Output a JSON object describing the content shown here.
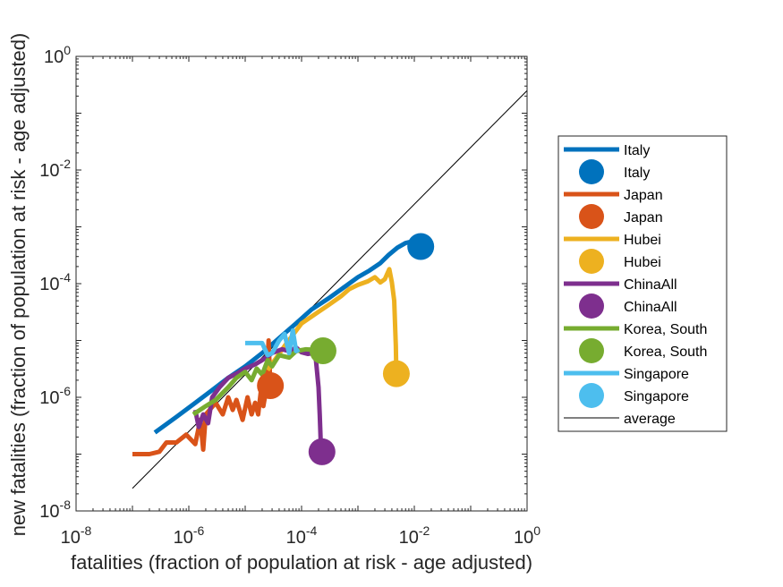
{
  "chart_data": {
    "type": "line",
    "xlabel": "fatalities (fraction of population at risk - age adjusted)",
    "ylabel": "new fatalities (fraction of population at risk - age adjusted)",
    "xscale": "log",
    "yscale": "log",
    "xlim": [
      1e-08,
      1
    ],
    "ylim": [
      1e-08,
      1
    ],
    "x_ticks": [
      {
        "base": "10",
        "exp": "-8"
      },
      {
        "base": "10",
        "exp": "-6"
      },
      {
        "base": "10",
        "exp": "-4"
      },
      {
        "base": "10",
        "exp": "-2"
      },
      {
        "base": "10",
        "exp": "0"
      }
    ],
    "y_ticks": [
      {
        "base": "10",
        "exp": "-8"
      },
      {
        "base": "10",
        "exp": "-6"
      },
      {
        "base": "10",
        "exp": "-4"
      },
      {
        "base": "10",
        "exp": "-2"
      },
      {
        "base": "10",
        "exp": "0"
      }
    ],
    "grid": false,
    "legend_position": "right",
    "series": [
      {
        "name": "Italy",
        "color": "#0072BD",
        "points": [
          [
            2.5e-07,
            2.4e-07
          ],
          [
            6e-07,
            4.5e-07
          ],
          [
            1.2e-06,
            7.5e-07
          ],
          [
            2.5e-06,
            1.3e-06
          ],
          [
            5e-06,
            2.2e-06
          ],
          [
            1e-05,
            3.5e-06
          ],
          [
            2e-05,
            6e-06
          ],
          [
            4e-05,
            1.1e-05
          ],
          [
            8e-05,
            2e-05
          ],
          [
            0.00015,
            3.5e-05
          ],
          [
            0.0003,
            5.5e-05
          ],
          [
            0.0006,
            9e-05
          ],
          [
            0.001,
            0.00013
          ],
          [
            0.0016,
            0.00017
          ],
          [
            0.0025,
            0.00023
          ],
          [
            0.0035,
            0.00032
          ],
          [
            0.005,
            0.00043
          ],
          [
            0.007,
            0.00052
          ],
          [
            0.009,
            0.00055
          ],
          [
            0.011,
            0.0005
          ],
          [
            0.013,
            0.00045
          ]
        ],
        "end_marker": [
          0.013,
          0.00045
        ]
      },
      {
        "name": "Japan",
        "color": "#D95319",
        "points": [
          [
            1e-07,
            1e-07
          ],
          [
            2e-07,
            1e-07
          ],
          [
            3e-07,
            1.1e-07
          ],
          [
            4e-07,
            1.6e-07
          ],
          [
            6e-07,
            1.6e-07
          ],
          [
            9e-07,
            2.2e-07
          ],
          [
            1.3e-06,
            1.5e-07
          ],
          [
            1.6e-06,
            4e-07
          ],
          [
            1.8e-06,
            1.2e-07
          ],
          [
            2e-06,
            5e-07
          ],
          [
            3e-06,
            8e-07
          ],
          [
            4e-06,
            5e-07
          ],
          [
            5e-06,
            1e-06
          ],
          [
            6e-06,
            6e-07
          ],
          [
            7e-06,
            9e-07
          ],
          [
            9e-06,
            4e-07
          ],
          [
            1.1e-05,
            1e-06
          ],
          [
            1.3e-05,
            5e-07
          ],
          [
            1.5e-05,
            8e-07
          ],
          [
            1.7e-05,
            5e-07
          ],
          [
            1.9e-05,
            1.3e-06
          ],
          [
            2.1e-05,
            7e-07
          ],
          [
            2.4e-05,
            1.5e-06
          ],
          [
            2.6e-05,
            1e-05
          ],
          [
            2.8e-05,
            1.6e-06
          ]
        ],
        "end_marker": [
          2.8e-05,
          1.6e-06
        ]
      },
      {
        "name": "Hubei",
        "color": "#EDB120",
        "points": [
          [
            2.5e-05,
            3e-06
          ],
          [
            5e-05,
            8e-06
          ],
          [
            0.0001,
            2e-05
          ],
          [
            0.0002,
            3.2e-05
          ],
          [
            0.0003,
            4.2e-05
          ],
          [
            0.0005,
            6e-05
          ],
          [
            0.0007,
            8e-05
          ],
          [
            0.001,
            9.5e-05
          ],
          [
            0.0015,
            0.00011
          ],
          [
            0.002,
            0.00013
          ],
          [
            0.0025,
            0.000105
          ],
          [
            0.003,
            0.00012
          ],
          [
            0.0036,
            0.00018
          ],
          [
            0.004,
            0.000105
          ],
          [
            0.0044,
            5e-05
          ],
          [
            0.0047,
            8e-06
          ],
          [
            0.0048,
            2.6e-06
          ]
        ],
        "end_marker": [
          0.0048,
          2.6e-06
        ]
      },
      {
        "name": "ChinaAll",
        "color": "#7E2F8E",
        "points": [
          [
            1.3e-06,
            6e-07
          ],
          [
            1.5e-06,
            3e-07
          ],
          [
            1.8e-06,
            5e-07
          ],
          [
            2.2e-06,
            3.5e-07
          ],
          [
            2.6e-06,
            1e-06
          ],
          [
            3.5e-06,
            1.5e-06
          ],
          [
            5e-06,
            2.2e-06
          ],
          [
            7e-06,
            2.6e-06
          ],
          [
            1e-05,
            3.2e-06
          ],
          [
            1.5e-05,
            3.8e-06
          ],
          [
            2e-05,
            4.5e-06
          ],
          [
            3e-05,
            6e-06
          ],
          [
            4.5e-05,
            7e-06
          ],
          [
            6e-05,
            6.5e-06
          ],
          [
            8e-05,
            7.5e-06
          ],
          [
            0.0001,
            6.2e-06
          ],
          [
            0.00013,
            5.8e-06
          ],
          [
            0.00016,
            6e-06
          ],
          [
            0.00018,
            4.5e-06
          ],
          [
            0.0002,
            1.5e-06
          ],
          [
            0.00021,
            5e-07
          ],
          [
            0.00022,
            1.4e-07
          ],
          [
            0.00023,
            1.1e-07
          ]
        ],
        "end_marker": [
          0.00023,
          1.1e-07
        ]
      },
      {
        "name": "Korea, South",
        "color": "#77AC30",
        "points": [
          [
            1.2e-06,
            5e-07
          ],
          [
            2e-06,
            7e-07
          ],
          [
            3e-06,
            9e-07
          ],
          [
            5e-06,
            1.5e-06
          ],
          [
            7e-06,
            2.2e-06
          ],
          [
            1e-05,
            2.8e-06
          ],
          [
            1.3e-05,
            2e-06
          ],
          [
            1.6e-05,
            3.2e-06
          ],
          [
            2e-05,
            2.5e-06
          ],
          [
            2.5e-05,
            4.5e-06
          ],
          [
            3e-05,
            3.5e-06
          ],
          [
            4e-05,
            5.5e-06
          ],
          [
            6e-05,
            5e-06
          ],
          [
            8e-05,
            6.5e-06
          ],
          [
            0.00012,
            7e-06
          ],
          [
            0.00018,
            6.8e-06
          ],
          [
            0.00024,
            6.6e-06
          ]
        ],
        "end_marker": [
          0.00024,
          6.6e-06
        ]
      },
      {
        "name": "Singapore",
        "color": "#4DBEEE",
        "points": [
          [
            1e-05,
            9e-06
          ],
          [
            2e-05,
            9e-06
          ],
          [
            2.5e-05,
            5.5e-06
          ],
          [
            3e-05,
            6e-06
          ],
          [
            4e-05,
            1e-05
          ],
          [
            5e-05,
            1.3e-05
          ],
          [
            6e-05,
            6e-06
          ],
          [
            7e-05,
            1.5e-05
          ],
          [
            8e-05,
            6.5e-06
          ],
          [
            9e-05,
            7e-06
          ]
        ],
        "end_marker": null
      }
    ],
    "average_line": {
      "name": "average",
      "color": "#000000",
      "points": [
        [
          1e-07,
          2.5e-08
        ],
        [
          1,
          0.25
        ]
      ]
    },
    "legend": [
      {
        "label": "Italy",
        "kind": "line",
        "color": "#0072BD"
      },
      {
        "label": "Italy",
        "kind": "marker",
        "color": "#0072BD"
      },
      {
        "label": "Japan",
        "kind": "line",
        "color": "#D95319"
      },
      {
        "label": "Japan",
        "kind": "marker",
        "color": "#D95319"
      },
      {
        "label": "Hubei",
        "kind": "line",
        "color": "#EDB120"
      },
      {
        "label": "Hubei",
        "kind": "marker",
        "color": "#EDB120"
      },
      {
        "label": "ChinaAll",
        "kind": "line",
        "color": "#7E2F8E"
      },
      {
        "label": "ChinaAll",
        "kind": "marker",
        "color": "#7E2F8E"
      },
      {
        "label": "Korea, South",
        "kind": "line",
        "color": "#77AC30"
      },
      {
        "label": "Korea, South",
        "kind": "marker",
        "color": "#77AC30"
      },
      {
        "label": "Singapore",
        "kind": "line",
        "color": "#4DBEEE"
      },
      {
        "label": "Singapore",
        "kind": "marker",
        "color": "#4DBEEE"
      },
      {
        "label": "average",
        "kind": "thin-line",
        "color": "#000000"
      }
    ]
  }
}
